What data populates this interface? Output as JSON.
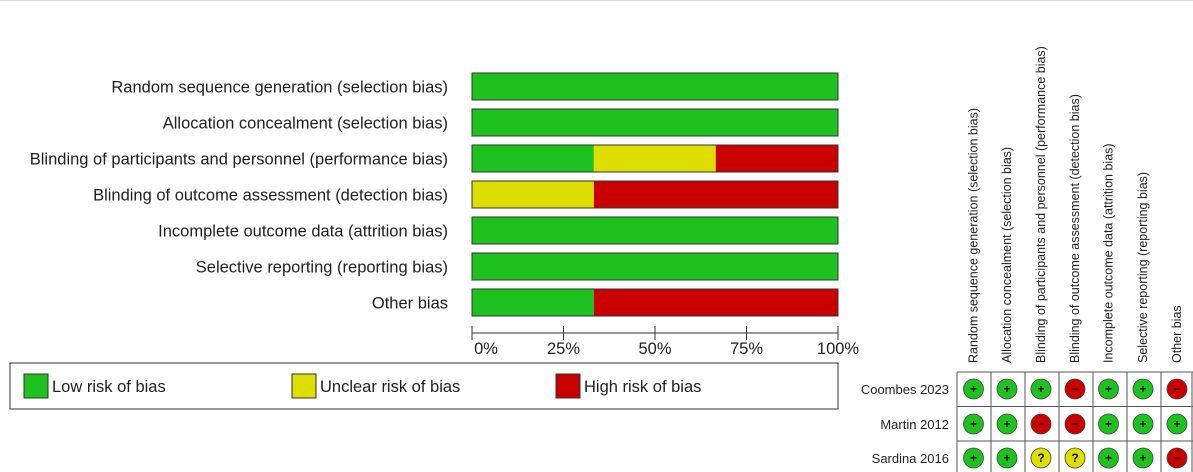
{
  "colors": {
    "low": "#1ec21e",
    "unclear": "#dede00",
    "high": "#c80000",
    "border": "#333333"
  },
  "chart_data": [
    {
      "type": "bar",
      "subtype": "stacked-horizontal-percent",
      "title": "",
      "xlabel": "",
      "ylabel": "",
      "xlim": [
        0,
        100
      ],
      "x_tick_labels": [
        "0%",
        "25%",
        "50%",
        "75%",
        "100%"
      ],
      "x_ticks": [
        0,
        25,
        50,
        75,
        100
      ],
      "categories": [
        "Random sequence generation (selection bias)",
        "Allocation concealment (selection bias)",
        "Blinding of participants and personnel (performance bias)",
        "Blinding of outcome assessment (detection bias)",
        "Incomplete outcome data (attrition bias)",
        "Selective reporting (reporting bias)",
        "Other bias"
      ],
      "series": [
        {
          "name": "Low risk of bias",
          "color_key": "low",
          "values": [
            100,
            100,
            33.3,
            0,
            100,
            100,
            33.3
          ]
        },
        {
          "name": "Unclear risk of bias",
          "color_key": "unclear",
          "values": [
            0,
            0,
            33.3,
            33.3,
            0,
            0,
            0
          ]
        },
        {
          "name": "High risk of bias",
          "color_key": "high",
          "values": [
            0,
            0,
            33.3,
            66.7,
            0,
            0,
            66.7
          ]
        }
      ],
      "legend": {
        "placement": "bottom",
        "items": [
          {
            "label": "Low risk of bias",
            "color_key": "low"
          },
          {
            "label": "Unclear risk of bias",
            "color_key": "unclear"
          },
          {
            "label": "High risk of bias",
            "color_key": "high"
          }
        ]
      },
      "grid": false
    },
    {
      "type": "table",
      "subtype": "risk-of-bias-summary",
      "columns": [
        "Random sequence generation (selection bias)",
        "Allocation concealment (selection bias)",
        "Blinding of participants and personnel (performance bias)",
        "Blinding of outcome assessment (detection bias)",
        "Incomplete outcome data (attrition bias)",
        "Selective reporting (reporting bias)",
        "Other bias"
      ],
      "rows": [
        {
          "study": "Coombes 2023",
          "judgements": [
            "low",
            "low",
            "low",
            "high",
            "low",
            "low",
            "high"
          ]
        },
        {
          "study": "Martin 2012",
          "judgements": [
            "low",
            "low",
            "high",
            "high",
            "low",
            "low",
            "low"
          ]
        },
        {
          "study": "Sardina 2016",
          "judgements": [
            "low",
            "low",
            "unclear",
            "unclear",
            "low",
            "low",
            "high"
          ]
        }
      ],
      "symbols": {
        "low": "+",
        "unclear": "?",
        "high": "−"
      }
    }
  ]
}
